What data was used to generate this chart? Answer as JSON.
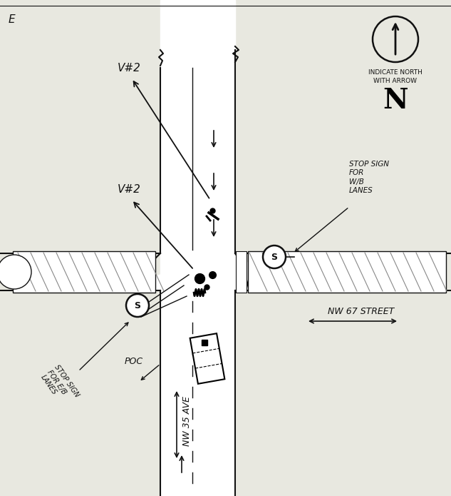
{
  "bg_color": "#e8e8e0",
  "line_color": "#111111",
  "road_fill": "#ffffff",
  "title_text": "E",
  "vert_xl": 0.365,
  "vert_xr": 0.535,
  "vert_xmid": 0.45,
  "vert_xcenter": 0.435,
  "horiz_yb": 0.415,
  "horiz_yt": 0.51,
  "horiz_ymid": 0.46,
  "label_nw35": "NW 35 AVE",
  "label_nw67": "NW 67 STREET",
  "label_poc": "POC",
  "label_v2_upper": "V#2",
  "label_v2_lower": "V#2",
  "label_stop_sign_right": "STOP SIGN\nFOR\nW/B\nLANES",
  "label_eb_lanes": "STOP SIGN\nFOR E/B\nLANES",
  "label_efros": "E/B\nLANES"
}
